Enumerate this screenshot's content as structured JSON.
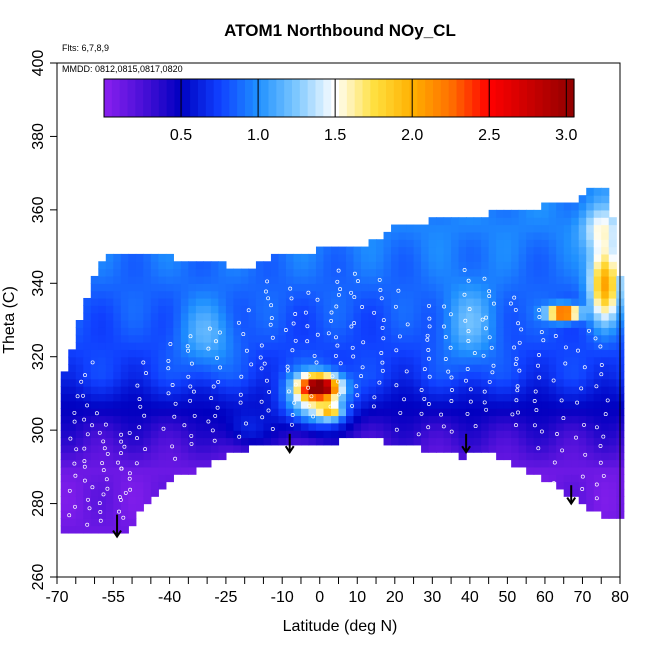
{
  "chart_data": {
    "type": "heatmap",
    "title": "ATOM1 Northbound NOy_CL",
    "annotations": {
      "flights": "Flts: 6,7,8,9",
      "dates": "MMDD: 0812,0815,0817,0820"
    },
    "xlabel": "Latitude (deg N)",
    "ylabel": "Theta (C)",
    "xlim": [
      -70,
      80
    ],
    "ylim": [
      260,
      400
    ],
    "x_ticks": [
      -70,
      -55,
      -40,
      -25,
      -10,
      0,
      10,
      20,
      30,
      40,
      50,
      60,
      70,
      80
    ],
    "x_tick_labels": [
      "-70",
      "-55",
      "-40",
      "-25",
      "-10",
      "0",
      "10",
      "20",
      "30",
      "40",
      "50",
      "60",
      "70",
      "80"
    ],
    "x_minor_ticks": [
      -65,
      -60,
      -50,
      -45,
      -35,
      -30,
      -20,
      -15,
      -5,
      5,
      15,
      25,
      35,
      45,
      55,
      65,
      75
    ],
    "y_ticks": [
      260,
      280,
      300,
      320,
      340,
      360,
      380,
      400
    ],
    "y_tick_labels": [
      "260",
      "280",
      "300",
      "320",
      "340",
      "360",
      "380",
      "400"
    ],
    "colorbar": {
      "range": [
        0,
        3.05
      ],
      "ticks": [
        0.5,
        1.0,
        1.5,
        2.0,
        2.5,
        3.0
      ],
      "tick_labels": [
        "0.5",
        "1.0",
        "1.5",
        "2.0",
        "2.5",
        "3.0"
      ],
      "stops": [
        {
          "value": 0.0,
          "color": "#8b20ef"
        },
        {
          "value": 0.25,
          "color": "#4b10d8"
        },
        {
          "value": 0.5,
          "color": "#0000c0"
        },
        {
          "value": 0.75,
          "color": "#1040ff"
        },
        {
          "value": 1.0,
          "color": "#1e90ff"
        },
        {
          "value": 1.25,
          "color": "#7ec8ff"
        },
        {
          "value": 1.5,
          "color": "#ffffff"
        },
        {
          "value": 1.75,
          "color": "#ffe040"
        },
        {
          "value": 2.0,
          "color": "#ffb000"
        },
        {
          "value": 2.25,
          "color": "#ff7000"
        },
        {
          "value": 2.5,
          "color": "#ff0000"
        },
        {
          "value": 2.75,
          "color": "#cc0000"
        },
        {
          "value": 3.05,
          "color": "#900000"
        }
      ]
    },
    "field": {
      "x_range": [
        -69,
        80
      ],
      "x_step": 2,
      "y_step": 2,
      "boundary": {
        "lower": [
          [
            -69,
            272
          ],
          [
            -62,
            272
          ],
          [
            -57,
            272
          ],
          [
            -52,
            273
          ],
          [
            -50,
            275
          ],
          [
            -46,
            281
          ],
          [
            -40,
            287
          ],
          [
            -34,
            289
          ],
          [
            -25,
            293
          ],
          [
            -15,
            296
          ],
          [
            -5,
            297
          ],
          [
            0,
            297
          ],
          [
            5,
            297
          ],
          [
            10,
            298
          ],
          [
            14,
            298
          ],
          [
            20,
            296
          ],
          [
            28,
            295
          ],
          [
            35,
            295
          ],
          [
            38,
            293
          ],
          [
            42,
            295
          ],
          [
            50,
            292
          ],
          [
            60,
            287
          ],
          [
            66,
            283
          ],
          [
            72,
            278
          ],
          [
            76,
            277
          ],
          [
            80,
            277
          ]
        ],
        "upper": [
          [
            -69,
            312
          ],
          [
            -67,
            318
          ],
          [
            -65,
            324
          ],
          [
            -63,
            334
          ],
          [
            -60,
            342
          ],
          [
            -57,
            347
          ],
          [
            -50,
            347
          ],
          [
            -40,
            347
          ],
          [
            -30,
            346
          ],
          [
            -20,
            344
          ],
          [
            -10,
            348
          ],
          [
            0,
            349
          ],
          [
            10,
            350
          ],
          [
            15,
            352
          ],
          [
            20,
            355
          ],
          [
            30,
            357
          ],
          [
            40,
            358
          ],
          [
            50,
            360
          ],
          [
            60,
            361
          ],
          [
            65,
            362
          ],
          [
            70,
            363
          ],
          [
            73,
            366
          ],
          [
            76,
            366
          ],
          [
            78,
            358
          ],
          [
            80,
            342
          ]
        ]
      },
      "blobs": [
        {
          "lat": 0,
          "theta": 312,
          "amp": 2.1,
          "sx": 5,
          "sy": 3
        },
        {
          "lat": -1,
          "theta": 308,
          "amp": 1.0,
          "sx": 8,
          "sy": 7
        },
        {
          "lat": 3,
          "theta": 305,
          "amp": 0.8,
          "sx": 3,
          "sy": 2
        },
        {
          "lat": 65,
          "theta": 332,
          "amp": 1.9,
          "sx": 4,
          "sy": 2
        },
        {
          "lat": 76,
          "theta": 340,
          "amp": 1.2,
          "sx": 4,
          "sy": 10
        },
        {
          "lat": 75,
          "theta": 355,
          "amp": 0.5,
          "sx": 5,
          "sy": 6
        },
        {
          "lat": 40,
          "theta": 328,
          "amp": 0.35,
          "sx": 8,
          "sy": 12
        },
        {
          "lat": -30,
          "theta": 325,
          "amp": 0.35,
          "sx": 8,
          "sy": 10
        },
        {
          "lat": -20,
          "theta": 300,
          "amp": 0.3,
          "sx": 6,
          "sy": 5
        }
      ]
    },
    "arrows": [
      {
        "lat": -54,
        "theta_start": 277,
        "theta_end": 271
      },
      {
        "lat": -8,
        "theta_start": 299,
        "theta_end": 294
      },
      {
        "lat": 39,
        "theta_start": 299,
        "theta_end": 294
      },
      {
        "lat": 67,
        "theta_start": 285,
        "theta_end": 280
      }
    ],
    "sample_profiles": [
      {
        "lat": -66,
        "theta_min": 275,
        "theta_max": 312
      },
      {
        "lat": -62,
        "theta_min": 274,
        "theta_max": 320
      },
      {
        "lat": -58,
        "theta_min": 275,
        "theta_max": 305
      },
      {
        "lat": -52,
        "theta_min": 276,
        "theta_max": 300
      },
      {
        "lat": -47,
        "theta_min": 290,
        "theta_max": 320
      },
      {
        "lat": -40,
        "theta_min": 292,
        "theta_max": 325
      },
      {
        "lat": -35,
        "theta_min": 295,
        "theta_max": 328
      },
      {
        "lat": -28,
        "theta_min": 296,
        "theta_max": 330
      },
      {
        "lat": -20,
        "theta_min": 298,
        "theta_max": 336
      },
      {
        "lat": -14,
        "theta_min": 300,
        "theta_max": 342
      },
      {
        "lat": -8,
        "theta_min": 300,
        "theta_max": 340
      },
      {
        "lat": -2,
        "theta_min": 302,
        "theta_max": 340
      },
      {
        "lat": 4,
        "theta_min": 305,
        "theta_max": 345
      },
      {
        "lat": 10,
        "theta_min": 305,
        "theta_max": 345
      },
      {
        "lat": 16,
        "theta_min": 306,
        "theta_max": 343
      },
      {
        "lat": 22,
        "theta_min": 300,
        "theta_max": 340
      },
      {
        "lat": 28,
        "theta_min": 298,
        "theta_max": 335
      },
      {
        "lat": 34,
        "theta_min": 298,
        "theta_max": 336
      },
      {
        "lat": 40,
        "theta_min": 300,
        "theta_max": 346
      },
      {
        "lat": 45,
        "theta_min": 305,
        "theta_max": 342
      },
      {
        "lat": 52,
        "theta_min": 300,
        "theta_max": 338
      },
      {
        "lat": 58,
        "theta_min": 295,
        "theta_max": 335
      },
      {
        "lat": 64,
        "theta_min": 285,
        "theta_max": 330
      },
      {
        "lat": 70,
        "theta_min": 282,
        "theta_max": 330
      },
      {
        "lat": 75,
        "theta_min": 280,
        "theta_max": 328
      }
    ]
  }
}
